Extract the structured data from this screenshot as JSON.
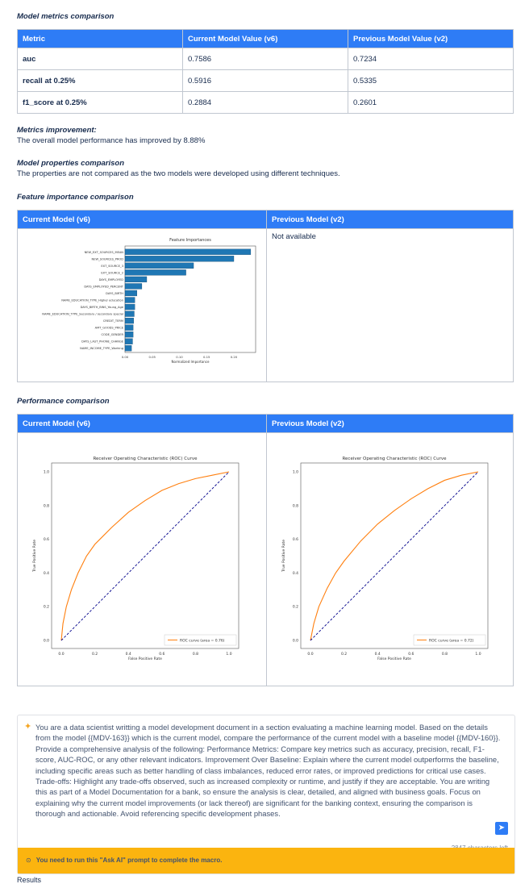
{
  "metrics": {
    "title": "Model metrics comparison",
    "headers": [
      "Metric",
      "Current Model Value (v6)",
      "Previous Model Value (v2)"
    ],
    "rows": [
      [
        "auc",
        "0.7586",
        "0.7234"
      ],
      [
        "recall at 0.25%",
        "0.5916",
        "0.5335"
      ],
      [
        "f1_score at 0.25%",
        "0.2884",
        "0.2601"
      ]
    ]
  },
  "improvement": {
    "title": "Metrics improvement:",
    "text": "The overall model performance has improved by 8.88%"
  },
  "properties": {
    "title": "Model properties comparison",
    "text": "The properties are not compared as the two models were developed using different techniques."
  },
  "feature": {
    "title": "Feature importance comparison",
    "current_header": "Current Model (v6)",
    "previous_header": "Previous Model (v2)",
    "previous_text": "Not available"
  },
  "performance": {
    "title": "Performance comparison",
    "current_header": "Current Model (v6)",
    "previous_header": "Previous Model (v2)"
  },
  "chart_data": [
    {
      "type": "bar",
      "orientation": "horizontal",
      "title": "Feature Importances",
      "xlabel": "Normalized Importance",
      "ylabel": "",
      "xlim": [
        0,
        0.24
      ],
      "xticks": [
        "0.00",
        "0.05",
        "0.10",
        "0.15",
        "0.20"
      ],
      "color": "#1f77b4",
      "categories": [
        "NEW_EXT_SOURCES_MEAN",
        "NEW_SOURCES_PROD",
        "EXT_SOURCE_3",
        "EXT_SOURCE_2",
        "DAYS_EMPLOYED",
        "DAYS_EMPLOYED_PERCENT",
        "DAYS_BIRTH",
        "NAME_EDUCATION_TYPE_Higher education",
        "DAYS_BIRTH_BINS_Young_Age",
        "NAME_EDUCATION_TYPE_Secondary / secondary special",
        "CREDIT_TERM",
        "AMT_GOODS_PRICE",
        "CODE_GENDER",
        "DAYS_LAST_PHONE_CHANGE",
        "NAME_INCOME_TYPE_Working"
      ],
      "values": [
        0.231,
        0.2,
        0.126,
        0.112,
        0.04,
        0.031,
        0.022,
        0.018,
        0.018,
        0.017,
        0.016,
        0.015,
        0.015,
        0.014,
        0.012
      ]
    },
    {
      "type": "line",
      "title": "Receiver Operating Characteristic (ROC) Curve",
      "xlabel": "False Positive Rate",
      "ylabel": "True Positive Rate",
      "xlim": [
        0,
        1
      ],
      "ylim": [
        0,
        1
      ],
      "ticks": [
        "0.0",
        "0.2",
        "0.4",
        "0.6",
        "0.8",
        "1.0"
      ],
      "legend": "bottom-right",
      "series": [
        {
          "name": "ROC curve (area = 0.76)",
          "color": "#ff7f0e",
          "x": [
            0,
            0.01,
            0.03,
            0.06,
            0.1,
            0.15,
            0.2,
            0.3,
            0.4,
            0.5,
            0.6,
            0.7,
            0.8,
            0.9,
            1
          ],
          "y": [
            0,
            0.1,
            0.2,
            0.3,
            0.4,
            0.5,
            0.57,
            0.67,
            0.76,
            0.83,
            0.89,
            0.93,
            0.96,
            0.98,
            1
          ]
        },
        {
          "color": "#00008b",
          "dashed": true,
          "x": [
            0,
            1
          ],
          "y": [
            0,
            1
          ]
        }
      ]
    },
    {
      "type": "line",
      "title": "Receiver Operating Characteristic (ROC) Curve",
      "xlabel": "False Positive Rate",
      "ylabel": "True Positive Rate",
      "xlim": [
        0,
        1
      ],
      "ylim": [
        0,
        1
      ],
      "ticks": [
        "0.0",
        "0.2",
        "0.4",
        "0.6",
        "0.8",
        "1.0"
      ],
      "legend": "bottom-right",
      "series": [
        {
          "name": "ROC curve (area = 0.72)",
          "color": "#ff7f0e",
          "x": [
            0,
            0.02,
            0.05,
            0.1,
            0.15,
            0.2,
            0.3,
            0.4,
            0.5,
            0.6,
            0.7,
            0.8,
            0.9,
            1
          ],
          "y": [
            0,
            0.1,
            0.2,
            0.31,
            0.4,
            0.47,
            0.59,
            0.69,
            0.77,
            0.84,
            0.9,
            0.95,
            0.98,
            1
          ]
        },
        {
          "color": "#00008b",
          "dashed": true,
          "x": [
            0,
            1
          ],
          "y": [
            0,
            1
          ]
        }
      ]
    }
  ],
  "prompt": {
    "text": "You are a data scientist writting a model development document in a section evaluating a machine learning model. Based on the details from the model {{MDV-163}} which is the current model, compare the performance of the current model with a baseline model {{MDV-160}}. Provide a comprehensive analysis of the following: Performance Metrics: Compare key metrics such as accuracy, precision, recall, F1-score, AUC-ROC, or any other relevant indicators. Improvement Over Baseline: Explain where the current model outperforms the baseline, including specific areas such as better handling of class imbalances, reduced error rates, or improved predictions for critical use cases. Trade-offs: Highlight any trade-offs observed, such as increased complexity or runtime, and justify if they are acceptable. You are writing this as part of a Model Documentation for a bank, so ensure the analysis is clear, detailed, and aligned with business goals. Focus on explaining why the current model improvements (or lack thereof) are significant for the banking context, ensuring the comparison is thorough and actionable. Avoid referencing specific development phases.",
    "chars_left": "2847 characters left",
    "warning": "You need to run this \"Ask AI\" prompt to complete the macro."
  },
  "results_label": "Results"
}
